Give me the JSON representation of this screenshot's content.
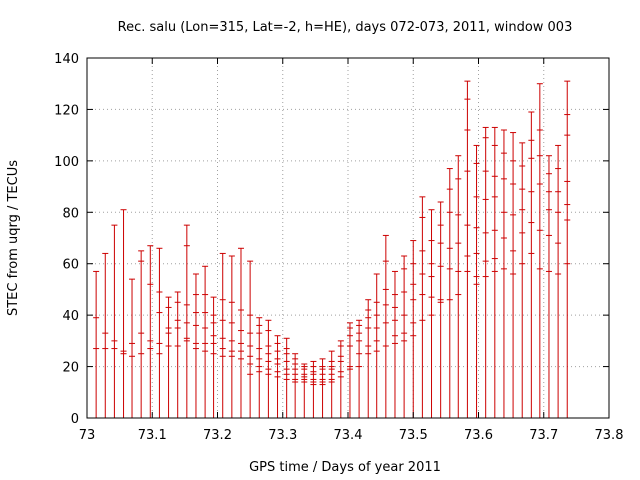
{
  "chart_data": {
    "type": "scatter",
    "title": "Rec. salu (Lon=315, Lat=-2, h=HE), days 072-073, 2011, window 003",
    "xlabel": "GPS time / Days of year 2011",
    "ylabel": "STEC from uqrg / TECUs",
    "xlim": [
      73,
      73.8
    ],
    "ylim": [
      0,
      140
    ],
    "x_ticks": [
      "73",
      "73.1",
      "73.2",
      "73.3",
      "73.4",
      "73.5",
      "73.6",
      "73.7",
      "73.8"
    ],
    "y_ticks": [
      "0",
      "20",
      "40",
      "60",
      "80",
      "100",
      "120",
      "140"
    ],
    "grid": true,
    "series_color": "#cc0000",
    "series": [
      {
        "style": "error-bars",
        "points": [
          {
            "x": 73.014,
            "values": [
              57,
              39,
              27
            ]
          },
          {
            "x": 73.028,
            "values": [
              64,
              33,
              27
            ]
          },
          {
            "x": 73.042,
            "values": [
              75,
              30,
              27
            ]
          },
          {
            "x": 73.056,
            "values": [
              81,
              26,
              25
            ]
          },
          {
            "x": 73.069,
            "values": [
              54,
              29,
              24
            ]
          },
          {
            "x": 73.083,
            "values": [
              65,
              61,
              33,
              25
            ]
          },
          {
            "x": 73.097,
            "values": [
              67,
              52,
              30,
              27
            ]
          },
          {
            "x": 73.111,
            "values": [
              66,
              49,
              41,
              29,
              25
            ]
          },
          {
            "x": 73.125,
            "values": [
              47,
              43,
              35,
              33,
              28
            ]
          },
          {
            "x": 73.139,
            "values": [
              49,
              45,
              38,
              35,
              28
            ]
          },
          {
            "x": 73.153,
            "values": [
              75,
              67,
              44,
              37,
              31,
              30
            ]
          },
          {
            "x": 73.167,
            "values": [
              56,
              48,
              41,
              36,
              29,
              27
            ]
          },
          {
            "x": 73.181,
            "values": [
              59,
              48,
              41,
              35,
              29,
              26
            ]
          },
          {
            "x": 73.194,
            "values": [
              47,
              40,
              37,
              32,
              29,
              25
            ]
          },
          {
            "x": 73.208,
            "values": [
              64,
              46,
              38,
              31,
              27,
              24
            ]
          },
          {
            "x": 73.222,
            "values": [
              63,
              45,
              37,
              30,
              26,
              24
            ]
          },
          {
            "x": 73.236,
            "values": [
              66,
              42,
              34,
              29,
              26,
              23
            ]
          },
          {
            "x": 73.25,
            "values": [
              61,
              40,
              33,
              28,
              24,
              21,
              17
            ]
          },
          {
            "x": 73.264,
            "values": [
              39,
              36,
              33,
              27,
              23,
              20,
              18
            ]
          },
          {
            "x": 73.278,
            "values": [
              38,
              34,
              28,
              25,
              22,
              19,
              17
            ]
          },
          {
            "x": 73.292,
            "values": [
              32,
              29,
              26,
              23,
              21,
              18,
              16
            ]
          },
          {
            "x": 73.306,
            "values": [
              31,
              27,
              25,
              22,
              19,
              17,
              15
            ]
          },
          {
            "x": 73.319,
            "values": [
              25,
              23,
              21,
              19,
              17,
              15,
              14
            ]
          },
          {
            "x": 73.333,
            "values": [
              21,
              20,
              19,
              17,
              16,
              15,
              14
            ]
          },
          {
            "x": 73.347,
            "values": [
              22,
              20,
              18,
              17,
              15,
              14,
              13
            ]
          },
          {
            "x": 73.361,
            "values": [
              23,
              20,
              19,
              17,
              15,
              14,
              13
            ]
          },
          {
            "x": 73.375,
            "values": [
              26,
              22,
              20,
              19,
              17,
              15,
              14
            ]
          },
          {
            "x": 73.389,
            "values": [
              30,
              28,
              24,
              22,
              18,
              16
            ]
          },
          {
            "x": 73.403,
            "values": [
              37,
              35,
              32,
              28,
              20,
              19
            ]
          },
          {
            "x": 73.417,
            "values": [
              38,
              36,
              33,
              30,
              25,
              20
            ]
          },
          {
            "x": 73.431,
            "values": [
              46,
              42,
              39,
              35,
              28,
              25
            ]
          },
          {
            "x": 73.444,
            "values": [
              56,
              45,
              40,
              35,
              30,
              26
            ]
          },
          {
            "x": 73.458,
            "values": [
              71,
              61,
              50,
              44,
              37,
              28
            ]
          },
          {
            "x": 73.472,
            "values": [
              57,
              48,
              43,
              38,
              32,
              29
            ]
          },
          {
            "x": 73.486,
            "values": [
              63,
              58,
              49,
              40,
              33,
              30
            ]
          },
          {
            "x": 73.5,
            "values": [
              69,
              60,
              52,
              46,
              37,
              32
            ]
          },
          {
            "x": 73.514,
            "values": [
              86,
              78,
              65,
              56,
              48,
              38
            ]
          },
          {
            "x": 73.528,
            "values": [
              81,
              69,
              60,
              55,
              47,
              40
            ]
          },
          {
            "x": 73.542,
            "values": [
              84,
              75,
              68,
              59,
              46,
              45
            ]
          },
          {
            "x": 73.556,
            "values": [
              97,
              89,
              80,
              66,
              58,
              46
            ]
          },
          {
            "x": 73.569,
            "values": [
              102,
              93,
              79,
              68,
              57,
              48
            ]
          },
          {
            "x": 73.583,
            "values": [
              131,
              124,
              112,
              96,
              75,
              63,
              57
            ]
          },
          {
            "x": 73.597,
            "values": [
              106,
              99,
              86,
              74,
              64,
              55,
              52
            ]
          },
          {
            "x": 73.611,
            "values": [
              113,
              109,
              96,
              85,
              72,
              61,
              55
            ]
          },
          {
            "x": 73.625,
            "values": [
              113,
              106,
              94,
              86,
              73,
              62,
              57
            ]
          },
          {
            "x": 73.639,
            "values": [
              112,
              103,
              93,
              80,
              70,
              58
            ]
          },
          {
            "x": 73.653,
            "values": [
              111,
              100,
              91,
              79,
              65,
              56
            ]
          },
          {
            "x": 73.667,
            "values": [
              107,
              98,
              89,
              81,
              72,
              60
            ]
          },
          {
            "x": 73.681,
            "values": [
              119,
              108,
              101,
              88,
              76,
              64
            ]
          },
          {
            "x": 73.694,
            "values": [
              130,
              112,
              102,
              91,
              73,
              58
            ]
          },
          {
            "x": 73.708,
            "values": [
              102,
              95,
              88,
              81,
              71,
              57
            ]
          },
          {
            "x": 73.722,
            "values": [
              106,
              97,
              88,
              80,
              68,
              56
            ]
          },
          {
            "x": 73.736,
            "values": [
              131,
              118,
              110,
              92,
              83,
              77,
              60
            ]
          }
        ]
      }
    ]
  }
}
